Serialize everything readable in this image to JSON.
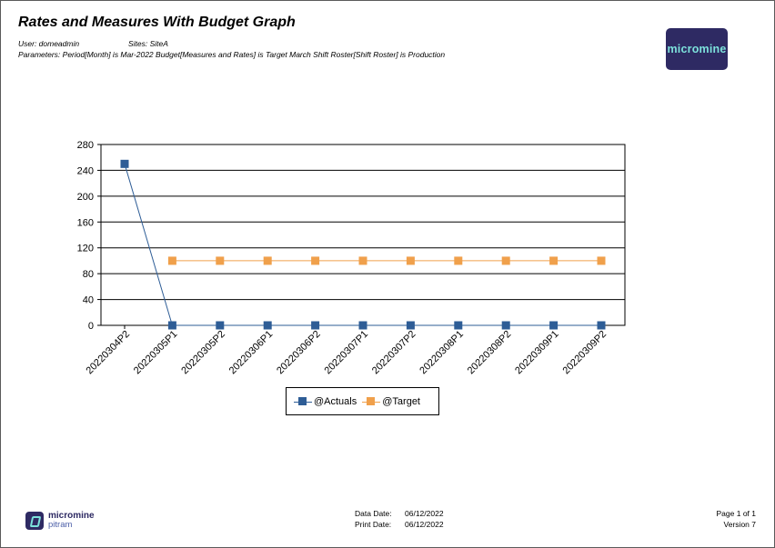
{
  "report": {
    "title": "Rates and Measures With Budget Graph",
    "user_line": "User: domeadmin",
    "sites_line": "Sites: SiteA",
    "parameters_line": "Parameters: Period[Month] is Mar-2022 Budget[Measures and Rates] is Target March Shift Roster[Shift Roster] is Production"
  },
  "logo": {
    "text": "micromine",
    "background": "#2e2a63",
    "text_color": "#7de2dc"
  },
  "footer": {
    "brand_line1": "micromine",
    "brand_line2": "pitram",
    "data_date_label": "Data Date:",
    "data_date_value": "06/12/2022",
    "print_date_label": "Print Date:",
    "print_date_value": "06/12/2022",
    "page_text": "Page 1 of 1",
    "version_text": "Version 7"
  },
  "chart_data": {
    "type": "line",
    "title": "",
    "xlabel": "",
    "ylabel": "",
    "categories": [
      "20220304P2",
      "20220305P1",
      "20220305P2",
      "20220306P1",
      "20220306P2",
      "20220307P1",
      "20220307P2",
      "20220308P1",
      "20220308P2",
      "20220309P1",
      "20220309P2"
    ],
    "yticks": [
      "0",
      "40",
      "80",
      "120",
      "160",
      "200",
      "240",
      "280"
    ],
    "ylim": [
      0,
      280
    ],
    "grid": "horizontal",
    "legend_position": "bottom",
    "series": [
      {
        "name": "@Actuals",
        "color": "#2e5d96",
        "values": [
          250,
          0,
          0,
          0,
          0,
          0,
          0,
          0,
          0,
          0,
          0
        ]
      },
      {
        "name": "@Target",
        "color": "#f0a04b",
        "values": [
          null,
          100,
          100,
          100,
          100,
          100,
          100,
          100,
          100,
          100,
          100
        ]
      }
    ]
  }
}
